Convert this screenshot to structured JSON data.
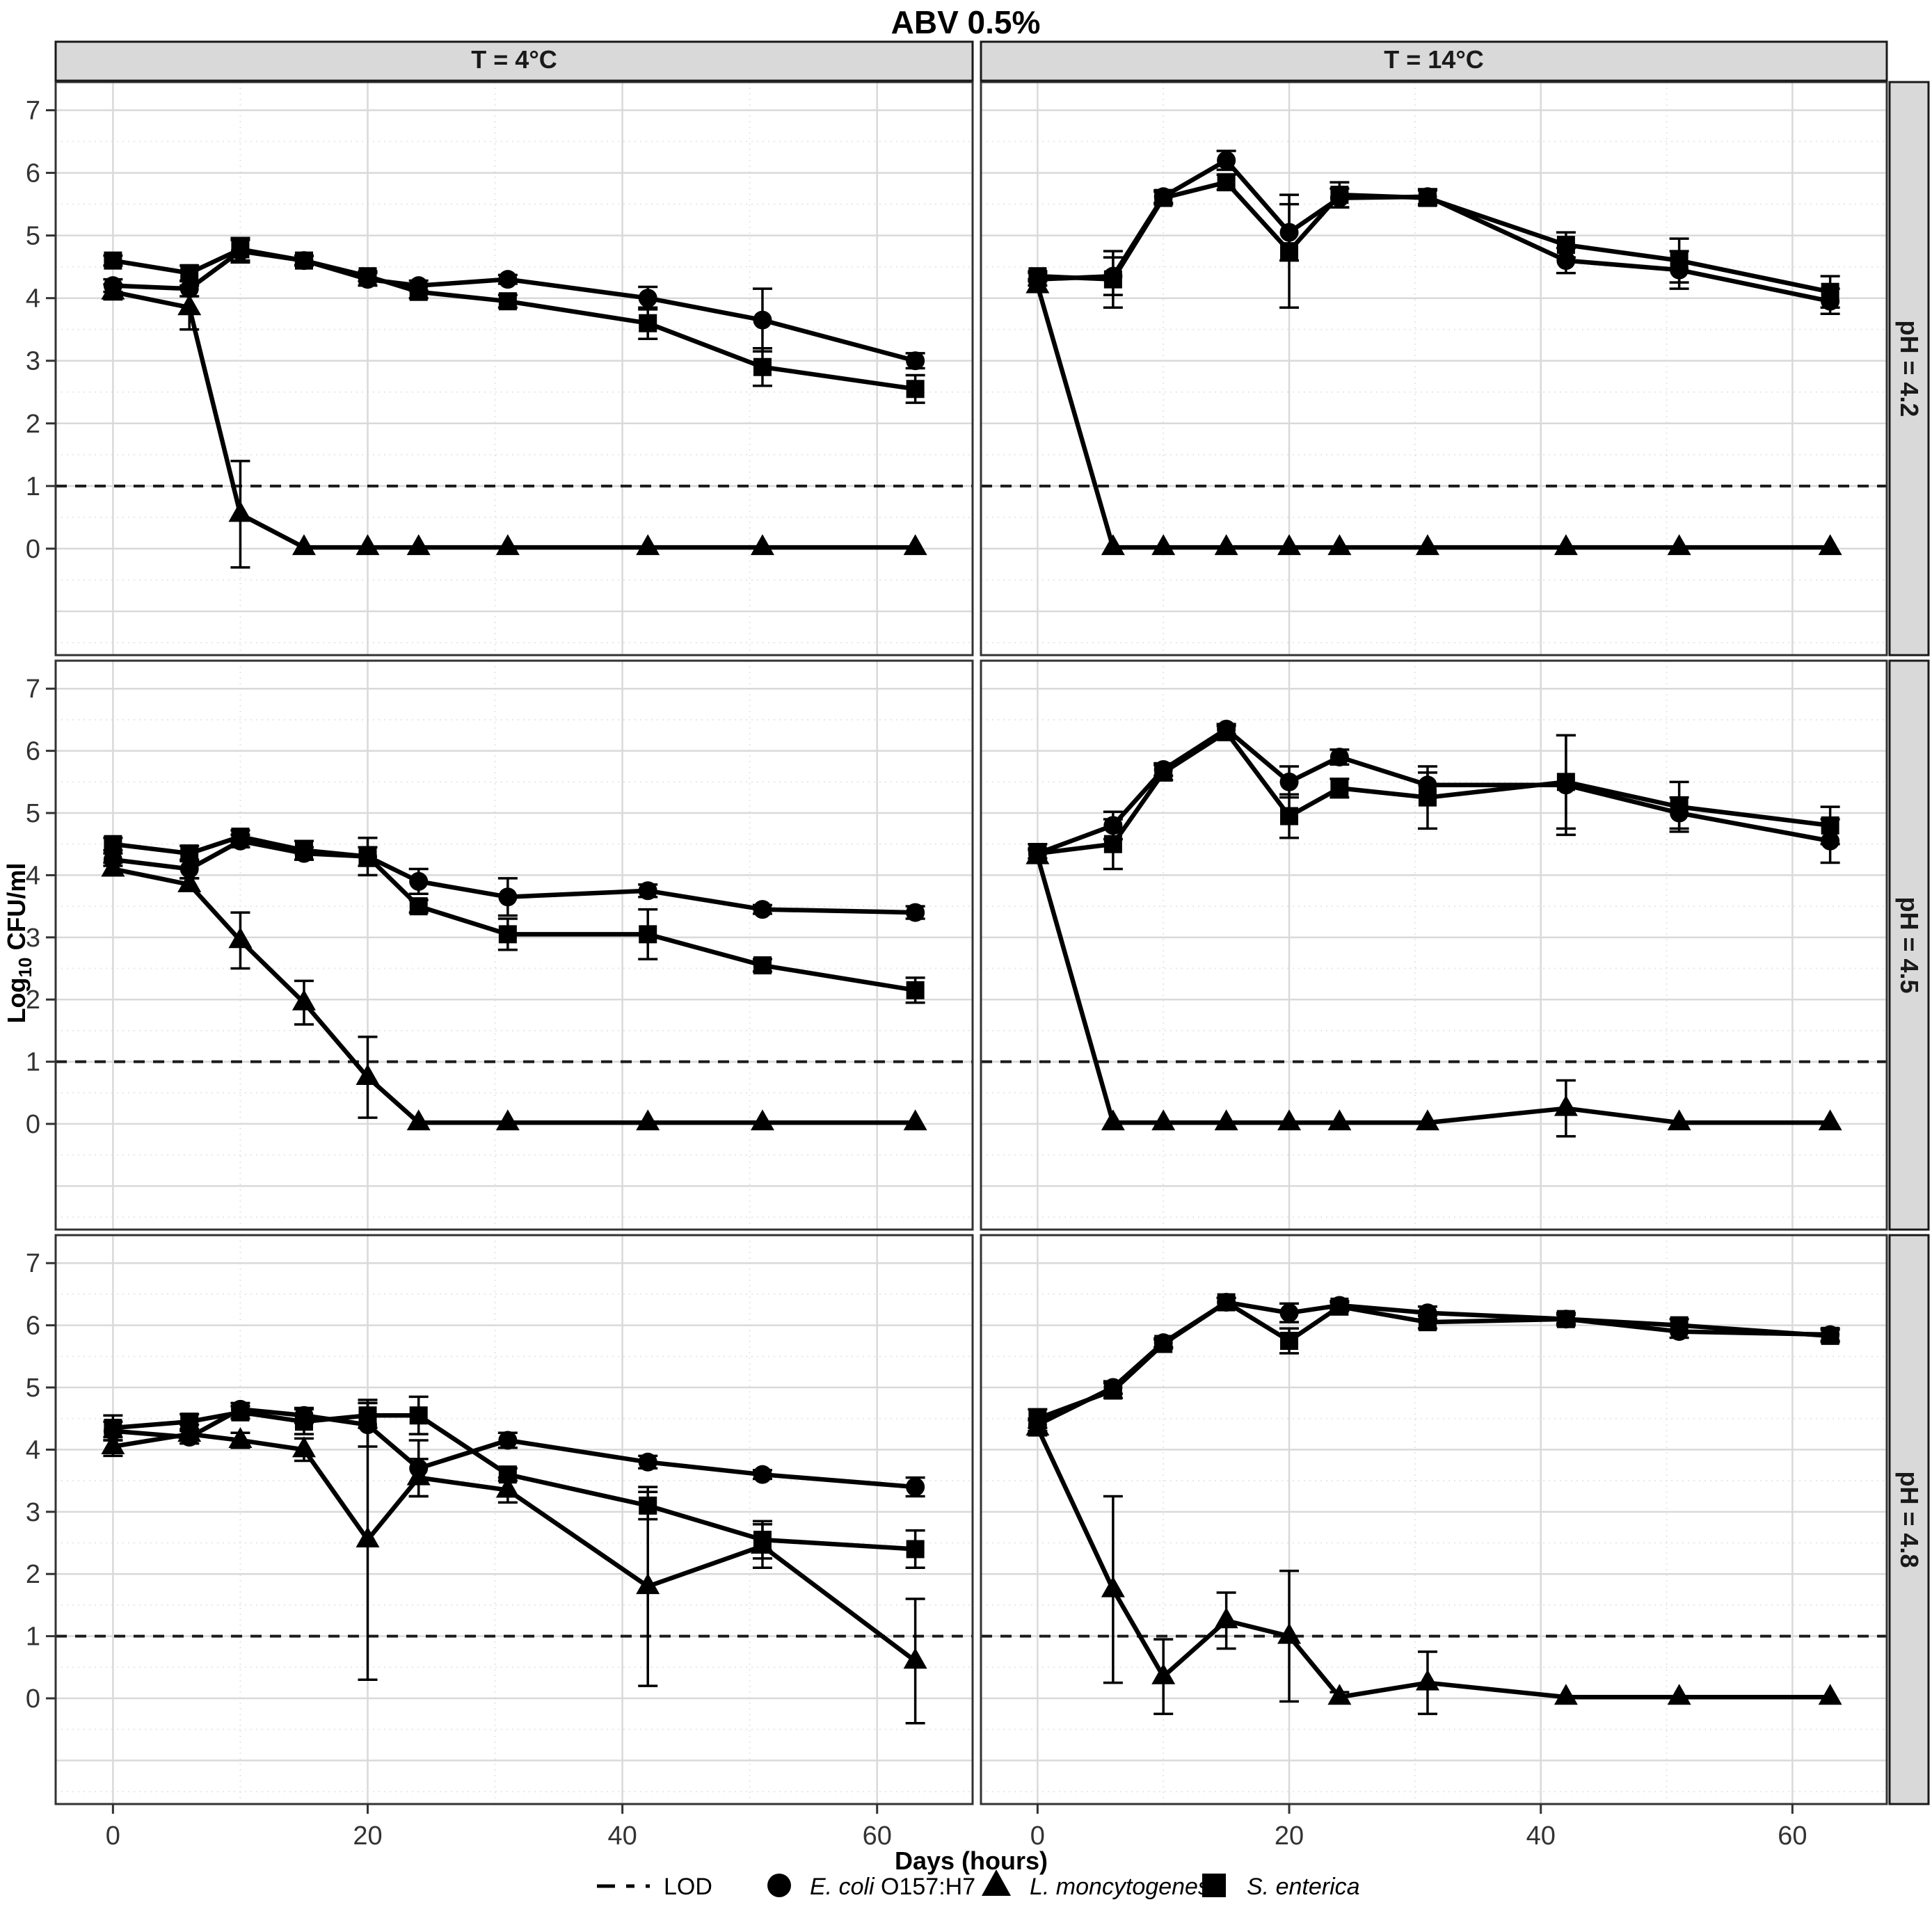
{
  "title": "ABV 0.5%",
  "col_strips": [
    "T = 4°C",
    "T = 14°C"
  ],
  "row_strips": [
    "pH = 4.2",
    "pH = 4.5",
    "pH = 4.8"
  ],
  "axis": {
    "xlabel": "Days (hours)",
    "ylabel_prefix": "Log",
    "ylabel_sub": "10",
    "ylabel_suffix": " CFU/ml"
  },
  "legend": {
    "lod": "LOD",
    "ecoli_italic": "E. coli",
    "ecoli_rest": " O157:H7",
    "listeria": "L. moncytogenes",
    "salmonella": "S. enterica"
  },
  "colors": {
    "series": "#000000",
    "panel_border": "#333333",
    "strip_fill": "#d9d9d9",
    "grid_major": "#d9d9d9",
    "grid_minor": "#e7e7e7",
    "tick_label": "#333333"
  },
  "chart_data": {
    "type": "line",
    "title": "ABV 0.5%",
    "xlabel": "Days (hours)",
    "ylabel": "Log10 CFU/ml",
    "x_ticks": [
      0,
      20,
      40,
      60
    ],
    "y_ticks": [
      0,
      1,
      2,
      3,
      4,
      5,
      6,
      7
    ],
    "xlim": [
      -4.5,
      67.5
    ],
    "ylim": [
      -1.7,
      7.45
    ],
    "lod_y": 1,
    "legend_position": "bottom",
    "grid": true,
    "x": [
      0,
      6,
      10,
      15,
      20,
      24,
      31,
      42,
      51,
      63
    ],
    "series_names": {
      "ecoli": "E. coli O157:H7",
      "listeria": "L. moncytogenes",
      "salmonella": "S. enterica"
    },
    "markers": {
      "ecoli": "circle",
      "listeria": "triangle",
      "salmonella": "square"
    },
    "facets": [
      {
        "col": "T = 4°C",
        "row": "pH = 4.2",
        "ecoli": {
          "values": [
            4.2,
            4.15,
            4.75,
            4.6,
            4.3,
            4.2,
            4.3,
            4.0,
            3.65,
            3.0
          ],
          "err": [
            0.1,
            0.12,
            0.18,
            0.07,
            0.1,
            0.08,
            0.07,
            0.18,
            0.5,
            0.12
          ]
        },
        "listeria": {
          "values": [
            4.1,
            3.85,
            0.55,
            0.02,
            0.02,
            0.02,
            0.02,
            0.02,
            0.02,
            0.02
          ],
          "err": [
            0.12,
            0.35,
            0.85,
            0,
            0,
            0,
            0,
            0,
            0,
            0
          ]
        },
        "salmonella": {
          "values": [
            4.6,
            4.4,
            4.78,
            4.6,
            4.35,
            4.1,
            3.95,
            3.6,
            2.9,
            2.55
          ],
          "err": [
            0.08,
            0.12,
            0.18,
            0.08,
            0.08,
            0.1,
            0.1,
            0.25,
            0.3,
            0.22
          ]
        }
      },
      {
        "col": "T = 14°C",
        "row": "pH = 4.2",
        "ecoli": {
          "values": [
            4.3,
            4.35,
            5.62,
            6.2,
            5.05,
            5.6,
            5.62,
            4.6,
            4.45,
            3.95
          ],
          "err": [
            0.1,
            0.3,
            0.1,
            0.15,
            0.45,
            0.15,
            0.12,
            0.2,
            0.3,
            0.2
          ]
        },
        "listeria": {
          "values": [
            4.2,
            0.02,
            0.02,
            0.02,
            0.02,
            0.02,
            0.02,
            0.02,
            0.02,
            0.02
          ],
          "err": [
            0.1,
            0,
            0,
            0,
            0,
            0,
            0,
            0,
            0,
            0
          ]
        },
        "salmonella": {
          "values": [
            4.35,
            4.3,
            5.6,
            5.85,
            4.75,
            5.65,
            5.6,
            4.85,
            4.6,
            4.1
          ],
          "err": [
            0.08,
            0.45,
            0.1,
            0.12,
            0.9,
            0.2,
            0.12,
            0.2,
            0.35,
            0.25
          ]
        }
      },
      {
        "col": "T = 4°C",
        "row": "pH = 4.5",
        "ecoli": {
          "values": [
            4.25,
            4.1,
            4.55,
            4.35,
            4.3,
            3.9,
            3.65,
            3.75,
            3.45,
            3.4
          ],
          "err": [
            0.1,
            0.15,
            0.1,
            0.1,
            0.15,
            0.2,
            0.3,
            0.1,
            0.07,
            0.1
          ]
        },
        "listeria": {
          "values": [
            4.1,
            3.85,
            2.95,
            1.95,
            0.75,
            0.02,
            0.02,
            0.02,
            0.02,
            0.02
          ],
          "err": [
            0.1,
            0.1,
            0.45,
            0.35,
            0.65,
            0,
            0,
            0,
            0,
            0
          ]
        },
        "salmonella": {
          "values": [
            4.5,
            4.35,
            4.62,
            4.4,
            4.3,
            3.5,
            3.05,
            3.05,
            2.55,
            2.15
          ],
          "err": [
            0.1,
            0.12,
            0.1,
            0.15,
            0.3,
            0.1,
            0.25,
            0.4,
            0.1,
            0.2
          ]
        }
      },
      {
        "col": "T = 14°C",
        "row": "pH = 4.5",
        "ecoli": {
          "values": [
            4.35,
            4.8,
            5.7,
            6.35,
            5.5,
            5.9,
            5.45,
            5.45,
            5.0,
            4.55
          ],
          "err": [
            0.08,
            0.22,
            0.1,
            0.08,
            0.25,
            0.12,
            0.2,
            0.8,
            0.25,
            0.35
          ]
        },
        "listeria": {
          "values": [
            4.3,
            0.02,
            0.02,
            0.02,
            0.02,
            0.02,
            0.02,
            0.25,
            0.02,
            0.02
          ],
          "err": [
            0.1,
            0,
            0,
            0,
            0,
            0,
            0,
            0.45,
            0,
            0
          ]
        },
        "salmonella": {
          "values": [
            4.35,
            4.5,
            5.65,
            6.3,
            4.95,
            5.4,
            5.25,
            5.5,
            5.1,
            4.8
          ],
          "err": [
            0.15,
            0.4,
            0.12,
            0.1,
            0.35,
            0.15,
            0.5,
            0.75,
            0.4,
            0.3
          ]
        }
      },
      {
        "col": "T = 4°C",
        "row": "pH = 4.8",
        "ecoli": {
          "values": [
            4.3,
            4.2,
            4.65,
            4.55,
            4.4,
            3.7,
            4.15,
            3.8,
            3.6,
            3.4
          ],
          "err": [
            0.15,
            0.1,
            0.1,
            0.12,
            0.35,
            0.45,
            0.12,
            0.1,
            0.07,
            0.15
          ]
        },
        "listeria": {
          "values": [
            4.05,
            4.25,
            4.15,
            4.0,
            2.55,
            3.55,
            3.35,
            1.8,
            2.45,
            0.6
          ],
          "err": [
            0.15,
            0.15,
            0.12,
            0.18,
            2.25,
            0.3,
            0.2,
            1.6,
            0.35,
            1.0
          ]
        },
        "salmonella": {
          "values": [
            4.35,
            4.45,
            4.6,
            4.45,
            4.55,
            4.55,
            3.6,
            3.1,
            2.55,
            2.4
          ],
          "err": [
            0.2,
            0.12,
            0.1,
            0.2,
            0.2,
            0.3,
            0.1,
            0.22,
            0.3,
            0.3
          ]
        }
      },
      {
        "col": "T = 14°C",
        "row": "pH = 4.8",
        "ecoli": {
          "values": [
            4.4,
            5.0,
            5.72,
            6.37,
            6.2,
            6.32,
            6.2,
            6.1,
            5.9,
            5.85
          ],
          "err": [
            0.1,
            0.1,
            0.07,
            0.07,
            0.15,
            0.07,
            0.1,
            0.07,
            0.1,
            0.1
          ]
        },
        "listeria": {
          "values": [
            4.35,
            1.75,
            0.35,
            1.25,
            1.0,
            0.02,
            0.25,
            0.02,
            0.02,
            0.02
          ],
          "err": [
            0.12,
            1.5,
            0.6,
            0.45,
            1.05,
            0.08,
            0.5,
            0,
            0,
            0
          ]
        },
        "salmonella": {
          "values": [
            4.5,
            4.95,
            5.7,
            6.37,
            5.75,
            6.3,
            6.05,
            6.1,
            6.0,
            5.83
          ],
          "err": [
            0.15,
            0.12,
            0.07,
            0.07,
            0.2,
            0.07,
            0.1,
            0.1,
            0.1,
            0.1
          ]
        }
      }
    ]
  }
}
